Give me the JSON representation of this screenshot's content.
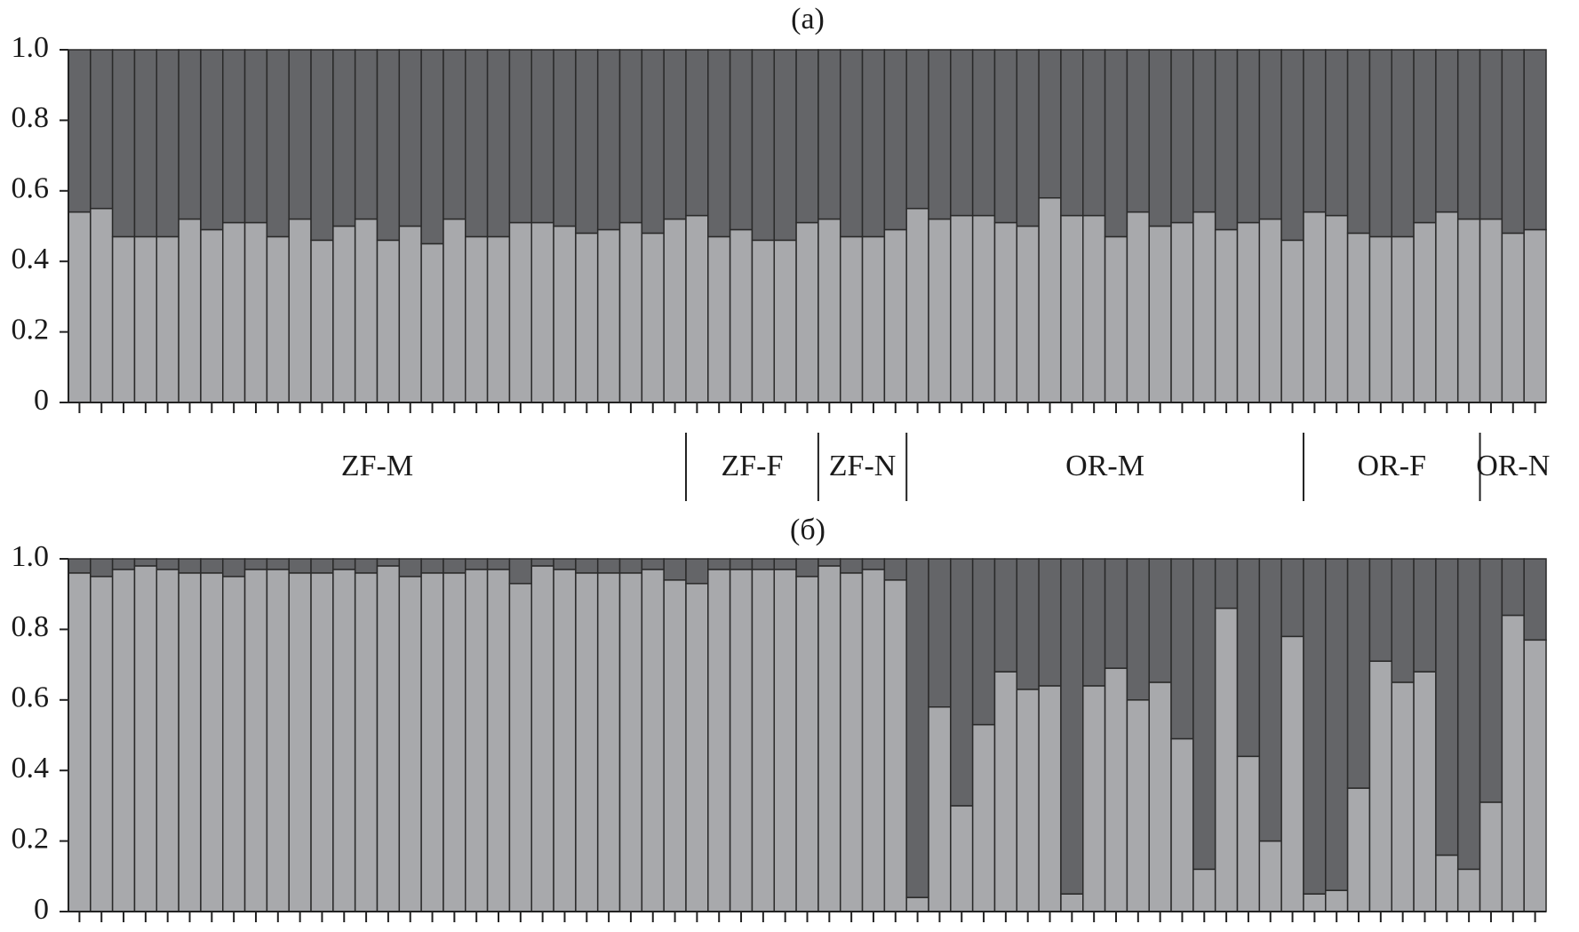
{
  "chart_data": [
    {
      "type": "bar",
      "stacked": true,
      "title": "(a)",
      "ylim": [
        0,
        1
      ],
      "yticks": [
        0,
        0.2,
        0.4,
        0.6,
        0.8,
        {
          "value": 1,
          "label": "1.0"
        }
      ],
      "groups": [
        {
          "label": "ZF-M",
          "size": 28
        },
        {
          "label": "ZF-F",
          "size": 6
        },
        {
          "label": "ZF-N",
          "size": 4
        },
        {
          "label": "OR-M",
          "size": 18
        },
        {
          "label": "OR-F",
          "size": 8
        },
        {
          "label": "OR-N",
          "size": 3
        }
      ],
      "series": [
        {
          "color": "#a8a9ac",
          "values": [
            0.54,
            0.55,
            0.47,
            0.47,
            0.47,
            0.52,
            0.49,
            0.51,
            0.51,
            0.47,
            0.52,
            0.46,
            0.5,
            0.52,
            0.46,
            0.5,
            0.45,
            0.52,
            0.47,
            0.47,
            0.51,
            0.51,
            0.5,
            0.48,
            0.49,
            0.51,
            0.48,
            0.52,
            0.53,
            0.47,
            0.49,
            0.46,
            0.46,
            0.51,
            0.52,
            0.47,
            0.47,
            0.49,
            0.55,
            0.52,
            0.53,
            0.53,
            0.51,
            0.5,
            0.58,
            0.53,
            0.53,
            0.47,
            0.54,
            0.5,
            0.51,
            0.54,
            0.49,
            0.51,
            0.52,
            0.46,
            0.54,
            0.53,
            0.48,
            0.47,
            0.47,
            0.51,
            0.54,
            0.52,
            0.52,
            0.48,
            0.49
          ]
        },
        {
          "color": "#646568",
          "values": [
            0.46,
            0.45,
            0.53,
            0.53,
            0.53,
            0.48,
            0.51,
            0.49,
            0.49,
            0.53,
            0.48,
            0.54,
            0.5,
            0.48,
            0.54,
            0.5,
            0.55,
            0.48,
            0.53,
            0.53,
            0.49,
            0.49,
            0.5,
            0.52,
            0.51,
            0.49,
            0.52,
            0.48,
            0.47,
            0.53,
            0.51,
            0.54,
            0.54,
            0.49,
            0.48,
            0.53,
            0.53,
            0.51,
            0.45,
            0.48,
            0.47,
            0.47,
            0.49,
            0.5,
            0.42,
            0.47,
            0.47,
            0.53,
            0.46,
            0.5,
            0.49,
            0.46,
            0.51,
            0.49,
            0.48,
            0.54,
            0.46,
            0.47,
            0.52,
            0.53,
            0.53,
            0.49,
            0.46,
            0.48,
            0.48,
            0.52,
            0.51
          ]
        }
      ]
    },
    {
      "type": "bar",
      "stacked": true,
      "title": "(б)",
      "ylim": [
        0,
        1
      ],
      "yticks": [
        0,
        0.2,
        0.4,
        0.6,
        0.8,
        {
          "value": 1,
          "label": "1.0"
        }
      ],
      "series": [
        {
          "color": "#a8a9ac",
          "values": [
            0.96,
            0.95,
            0.97,
            0.98,
            0.97,
            0.96,
            0.96,
            0.95,
            0.97,
            0.97,
            0.96,
            0.96,
            0.97,
            0.96,
            0.98,
            0.95,
            0.96,
            0.96,
            0.97,
            0.97,
            0.93,
            0.98,
            0.97,
            0.96,
            0.96,
            0.96,
            0.97,
            0.94,
            0.93,
            0.97,
            0.97,
            0.97,
            0.97,
            0.95,
            0.98,
            0.96,
            0.97,
            0.94,
            0.04,
            0.58,
            0.3,
            0.53,
            0.68,
            0.63,
            0.64,
            0.05,
            0.64,
            0.69,
            0.6,
            0.65,
            0.49,
            0.12,
            0.86,
            0.44,
            0.2,
            0.78,
            0.05,
            0.06,
            0.35,
            0.71,
            0.65,
            0.68,
            0.16,
            0.12,
            0.31,
            0.84,
            0.77
          ]
        },
        {
          "color": "#646568",
          "values": [
            0.04,
            0.05,
            0.03,
            0.02,
            0.03,
            0.04,
            0.04,
            0.05,
            0.03,
            0.03,
            0.04,
            0.04,
            0.03,
            0.04,
            0.02,
            0.05,
            0.04,
            0.04,
            0.03,
            0.03,
            0.07,
            0.02,
            0.03,
            0.04,
            0.04,
            0.04,
            0.03,
            0.06,
            0.07,
            0.03,
            0.03,
            0.03,
            0.03,
            0.05,
            0.02,
            0.04,
            0.03,
            0.06,
            0.96,
            0.42,
            0.7,
            0.47,
            0.32,
            0.37,
            0.36,
            0.95,
            0.36,
            0.31,
            0.4,
            0.35,
            0.51,
            0.88,
            0.14,
            0.56,
            0.8,
            0.22,
            0.95,
            0.94,
            0.65,
            0.29,
            0.35,
            0.32,
            0.84,
            0.88,
            0.69,
            0.16,
            0.23
          ]
        }
      ]
    }
  ]
}
